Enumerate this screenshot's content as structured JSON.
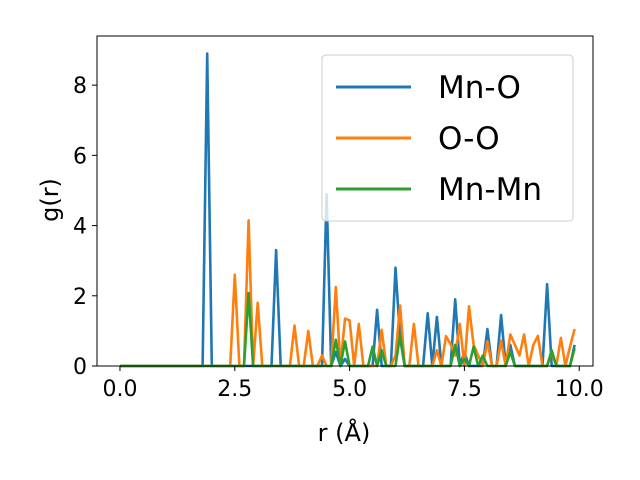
{
  "chart_data": {
    "type": "line",
    "xlabel": "r (Å)",
    "ylabel": "g(r)",
    "xlim": [
      -0.5,
      10.3
    ],
    "ylim": [
      0,
      9.4
    ],
    "xticks": [
      "0.0",
      "2.5",
      "5.0",
      "7.5",
      "10.0"
    ],
    "yticks": [
      "0",
      "2",
      "4",
      "6",
      "8"
    ],
    "grid": false,
    "legend_position": "top-right",
    "x": [
      0.0,
      0.1,
      0.2,
      0.3,
      0.4,
      0.5,
      0.6,
      0.7,
      0.8,
      0.9,
      1.0,
      1.1,
      1.2,
      1.3,
      1.4,
      1.5,
      1.6,
      1.7,
      1.8,
      1.9,
      2.0,
      2.1,
      2.2,
      2.3,
      2.4,
      2.5,
      2.6,
      2.7,
      2.8,
      2.9,
      3.0,
      3.1,
      3.2,
      3.3,
      3.4,
      3.5,
      3.6,
      3.7,
      3.8,
      3.9,
      4.0,
      4.1,
      4.2,
      4.3,
      4.4,
      4.5,
      4.6,
      4.7,
      4.8,
      4.9,
      5.0,
      5.1,
      5.2,
      5.3,
      5.4,
      5.5,
      5.6,
      5.7,
      5.8,
      5.9,
      6.0,
      6.1,
      6.2,
      6.3,
      6.4,
      6.5,
      6.6,
      6.7,
      6.8,
      6.9,
      7.0,
      7.1,
      7.2,
      7.3,
      7.4,
      7.5,
      7.6,
      7.7,
      7.8,
      7.9,
      8.0,
      8.1,
      8.2,
      8.3,
      8.4,
      8.5,
      8.6,
      8.7,
      8.8,
      8.9,
      9.0,
      9.1,
      9.2,
      9.3,
      9.4,
      9.5,
      9.6,
      9.7,
      9.8,
      9.9
    ],
    "series": [
      {
        "name": "Mn-O",
        "color": "#1f77b4",
        "values": [
          0,
          0,
          0,
          0,
          0,
          0,
          0,
          0,
          0,
          0,
          0,
          0,
          0,
          0,
          0,
          0,
          0,
          0,
          0,
          8.9,
          0,
          0,
          0,
          0,
          0,
          0,
          0,
          0,
          0,
          0,
          0,
          0,
          0,
          0,
          3.3,
          0,
          0,
          0,
          0,
          0,
          0,
          0,
          0,
          0,
          0,
          4.9,
          0,
          0.4,
          0,
          0.2,
          0,
          0,
          0,
          0,
          0,
          0,
          1.6,
          0,
          0,
          0,
          2.8,
          0.8,
          0,
          0,
          0,
          0,
          0,
          1.5,
          0,
          1.4,
          0,
          0,
          0,
          1.9,
          0,
          0.4,
          0,
          0,
          0,
          0,
          1.05,
          0,
          0,
          1.45,
          0,
          0.6,
          0,
          0,
          0,
          0,
          0,
          0,
          0,
          2.33,
          0,
          0,
          0,
          0,
          0,
          0.6
        ]
      },
      {
        "name": "O-O",
        "color": "#ff7f0e",
        "values": [
          0,
          0,
          0,
          0,
          0,
          0,
          0,
          0,
          0,
          0,
          0,
          0,
          0,
          0,
          0,
          0,
          0,
          0,
          0,
          0,
          0,
          0,
          0,
          0,
          0,
          2.6,
          0,
          0,
          4.15,
          0,
          1.8,
          0,
          0,
          0,
          0,
          0,
          0,
          0,
          1.15,
          0,
          0,
          1.0,
          0,
          0,
          0.3,
          0,
          0,
          2.25,
          0,
          1.35,
          1.3,
          0,
          1.2,
          0,
          0,
          0,
          0,
          1.03,
          0,
          0,
          0.3,
          1.72,
          0,
          0,
          1.2,
          0,
          0,
          0,
          0,
          0.45,
          0,
          0.85,
          0.62,
          0.3,
          1.2,
          0,
          1.7,
          0.6,
          0.3,
          0,
          0.7,
          0,
          0,
          0.72,
          0,
          0.9,
          0.6,
          0.3,
          0.9,
          0,
          0.6,
          0.86,
          0,
          0,
          0.4,
          0,
          0.8,
          0,
          0.55,
          1.05
        ]
      },
      {
        "name": "Mn-Mn",
        "color": "#2ca02c",
        "values": [
          0,
          0,
          0,
          0,
          0,
          0,
          0,
          0,
          0,
          0,
          0,
          0,
          0,
          0,
          0,
          0,
          0,
          0,
          0,
          0,
          0,
          0,
          0,
          0,
          0,
          0,
          0,
          0,
          2.08,
          0,
          0,
          0,
          0,
          0,
          0,
          0,
          0,
          0,
          0,
          0,
          0,
          0,
          0,
          0,
          0,
          0,
          0,
          0.75,
          0,
          0.7,
          0,
          0,
          0,
          0,
          0,
          0.55,
          0,
          0.45,
          0,
          0,
          0,
          0.9,
          0,
          0,
          0,
          0,
          0,
          0,
          0,
          0,
          0,
          0,
          0,
          0.6,
          0,
          0.2,
          0,
          0.55,
          0,
          0.3,
          0,
          0,
          0,
          0,
          0,
          0.4,
          0,
          0,
          0,
          0,
          0,
          0,
          0,
          0,
          0.45,
          0,
          0,
          0,
          0,
          0.5
        ]
      }
    ]
  }
}
